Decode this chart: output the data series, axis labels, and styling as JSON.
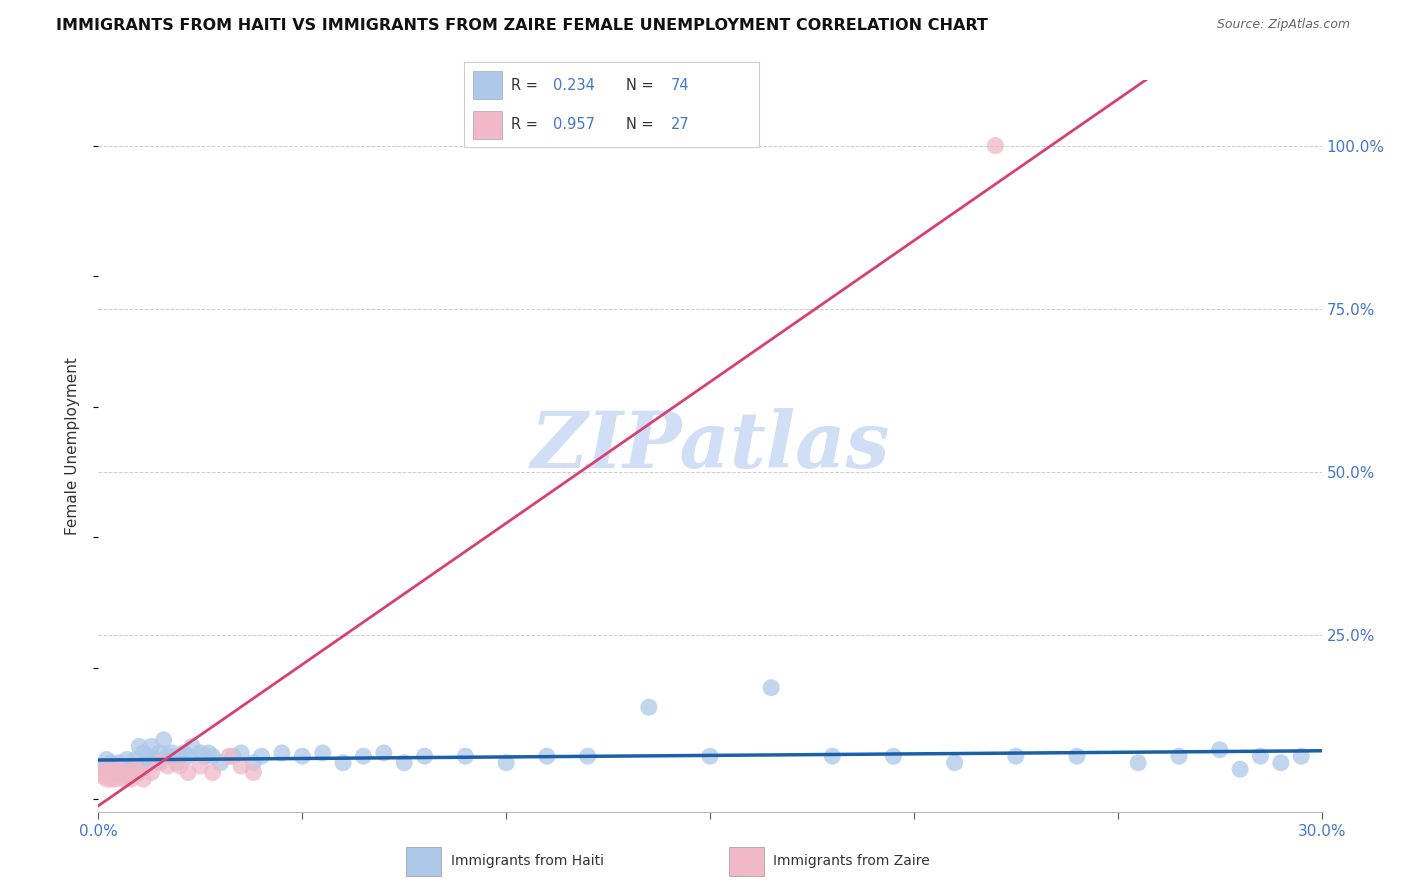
{
  "title": "IMMIGRANTS FROM HAITI VS IMMIGRANTS FROM ZAIRE FEMALE UNEMPLOYMENT CORRELATION CHART",
  "source": "Source: ZipAtlas.com",
  "ylabel": "Female Unemployment",
  "xlim": [
    0.0,
    0.3
  ],
  "ylim": [
    -0.02,
    1.1
  ],
  "yticks_right": [
    0.0,
    0.25,
    0.5,
    0.75,
    1.0
  ],
  "ytick_labels_right": [
    "",
    "25.0%",
    "50.0%",
    "75.0%",
    "100.0%"
  ],
  "haiti_color": "#adc8e8",
  "haiti_line_color": "#1a5fa8",
  "zaire_color": "#f0b8c8",
  "zaire_line_color": "#d84070",
  "watermark": "ZIPatlas",
  "watermark_color": "#d0dff5",
  "legend_haiti_R": "0.234",
  "legend_haiti_N": "74",
  "legend_zaire_R": "0.957",
  "legend_zaire_N": "27",
  "haiti_x": [
    0.001,
    0.0015,
    0.002,
    0.002,
    0.003,
    0.003,
    0.003,
    0.004,
    0.004,
    0.005,
    0.005,
    0.006,
    0.006,
    0.006,
    0.007,
    0.007,
    0.008,
    0.008,
    0.009,
    0.009,
    0.01,
    0.01,
    0.011,
    0.011,
    0.012,
    0.012,
    0.013,
    0.014,
    0.015,
    0.015,
    0.016,
    0.017,
    0.018,
    0.019,
    0.02,
    0.021,
    0.022,
    0.023,
    0.025,
    0.026,
    0.027,
    0.028,
    0.03,
    0.033,
    0.035,
    0.038,
    0.04,
    0.045,
    0.05,
    0.055,
    0.06,
    0.065,
    0.07,
    0.075,
    0.08,
    0.09,
    0.1,
    0.11,
    0.12,
    0.135,
    0.15,
    0.165,
    0.18,
    0.195,
    0.21,
    0.225,
    0.24,
    0.255,
    0.265,
    0.275,
    0.28,
    0.285,
    0.29,
    0.295
  ],
  "haiti_y": [
    0.045,
    0.05,
    0.04,
    0.06,
    0.05,
    0.04,
    0.055,
    0.04,
    0.05,
    0.05,
    0.055,
    0.04,
    0.05,
    0.035,
    0.06,
    0.04,
    0.05,
    0.04,
    0.06,
    0.05,
    0.045,
    0.08,
    0.055,
    0.07,
    0.065,
    0.055,
    0.08,
    0.06,
    0.07,
    0.055,
    0.09,
    0.065,
    0.07,
    0.055,
    0.065,
    0.07,
    0.065,
    0.08,
    0.07,
    0.065,
    0.07,
    0.065,
    0.055,
    0.065,
    0.07,
    0.055,
    0.065,
    0.07,
    0.065,
    0.07,
    0.055,
    0.065,
    0.07,
    0.055,
    0.065,
    0.065,
    0.055,
    0.065,
    0.065,
    0.14,
    0.065,
    0.17,
    0.065,
    0.065,
    0.055,
    0.065,
    0.065,
    0.055,
    0.065,
    0.075,
    0.045,
    0.065,
    0.055,
    0.065
  ],
  "zaire_x": [
    0.001,
    0.001,
    0.002,
    0.002,
    0.003,
    0.003,
    0.004,
    0.004,
    0.005,
    0.005,
    0.006,
    0.007,
    0.008,
    0.009,
    0.01,
    0.011,
    0.013,
    0.015,
    0.017,
    0.02,
    0.022,
    0.025,
    0.028,
    0.032,
    0.035,
    0.038,
    0.22
  ],
  "zaire_y": [
    0.035,
    0.04,
    0.03,
    0.045,
    0.04,
    0.03,
    0.04,
    0.03,
    0.045,
    0.04,
    0.03,
    0.04,
    0.03,
    0.045,
    0.04,
    0.03,
    0.04,
    0.055,
    0.05,
    0.05,
    0.04,
    0.05,
    0.04,
    0.065,
    0.05,
    0.04,
    1.0
  ]
}
